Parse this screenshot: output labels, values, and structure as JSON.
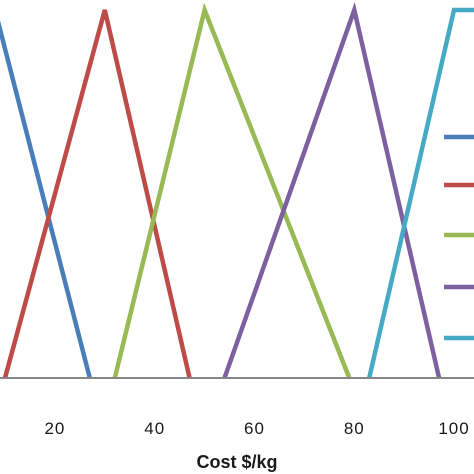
{
  "chart_data": {
    "type": "line",
    "title": "",
    "xlabel": "Cost $/kg",
    "ylabel": "",
    "xlim": [
      9,
      104
    ],
    "ylim": [
      0,
      1
    ],
    "xticks": [
      20,
      40,
      60,
      80,
      100
    ],
    "grid": false,
    "legend_position": "right",
    "series": [
      {
        "color": "#4a7ebb",
        "x": [
          8,
          27
        ],
        "y": [
          1,
          0
        ]
      },
      {
        "color": "#be4b48",
        "x": [
          10,
          30,
          47
        ],
        "y": [
          0,
          1,
          0
        ]
      },
      {
        "color": "#98b954",
        "x": [
          32,
          50,
          79
        ],
        "y": [
          0,
          1,
          0
        ]
      },
      {
        "color": "#7d60a0",
        "x": [
          54,
          80,
          97
        ],
        "y": [
          0,
          1,
          0
        ]
      },
      {
        "color": "#46aac5",
        "x": [
          83,
          100,
          104
        ],
        "y": [
          0,
          1,
          1
        ]
      }
    ]
  }
}
